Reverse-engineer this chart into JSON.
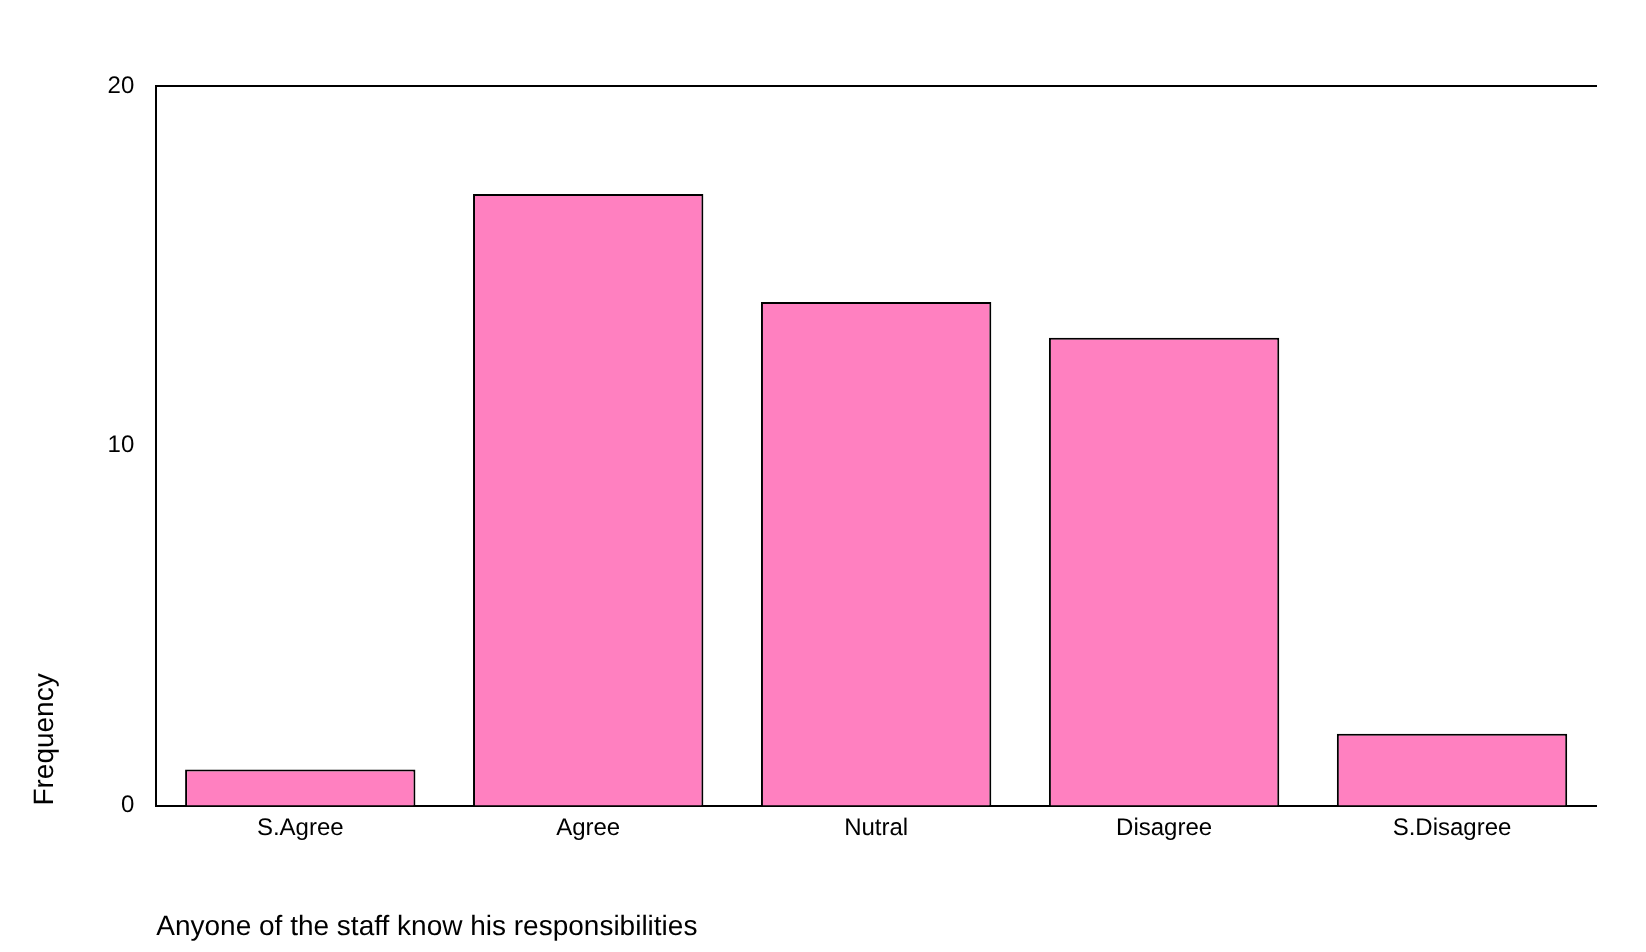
{
  "chart_data": {
    "type": "bar",
    "xlabel": "Anyone of the staff know his responsibilities",
    "ylabel": "Frequency",
    "categories": [
      "S.Agree",
      "Agree",
      "Nutral",
      "Disagree",
      "S.Disagree"
    ],
    "values": [
      1,
      17,
      14,
      13,
      2
    ],
    "color": "#ff80c0",
    "ylim": [
      0,
      20
    ],
    "yticks": [
      0,
      10,
      20
    ],
    "grid": false,
    "legend": false
  }
}
